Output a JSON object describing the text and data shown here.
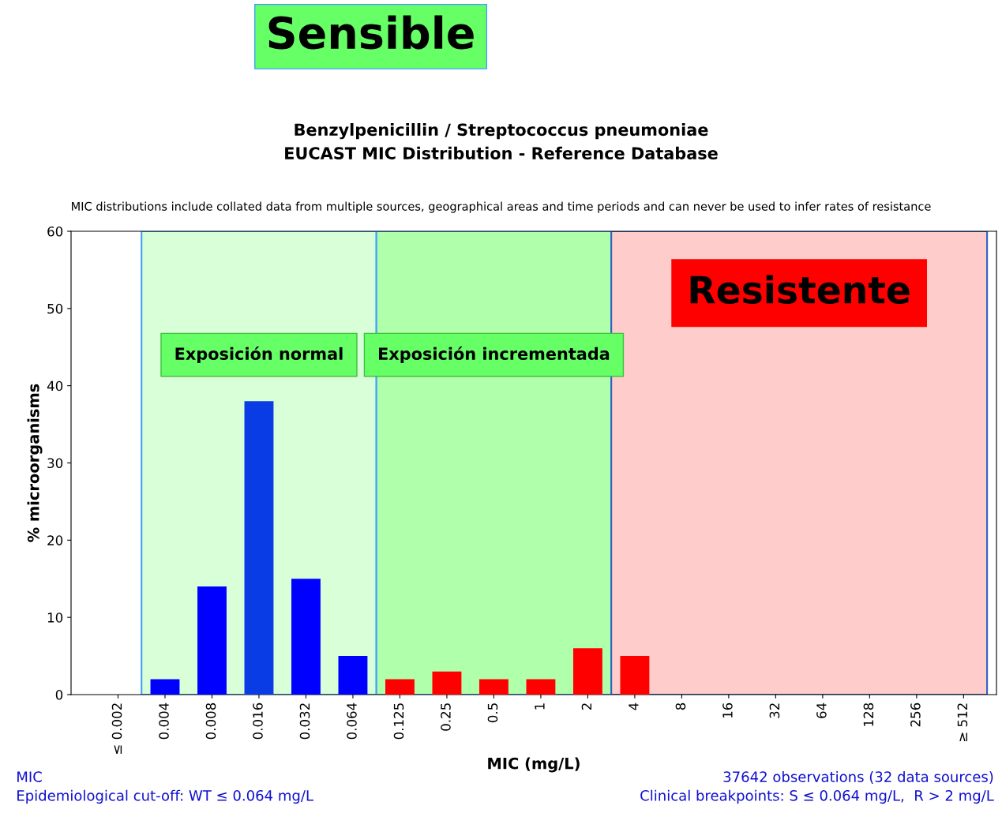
{
  "chart_data": {
    "type": "bar",
    "title": "Benzylpenicillin / Streptococcus pneumoniae\nEUCAST MIC Distribution - Reference Database",
    "subtitle": "MIC distributions include collated data from multiple sources, geographical areas and time periods and can never be used to infer rates of resistance",
    "xlabel": "MIC (mg/L)",
    "ylabel": "% microorganisms",
    "categories": [
      "≤ 0.002",
      "0.004",
      "0.008",
      "0.016",
      "0.032",
      "0.064",
      "0.125",
      "0.25",
      "0.5",
      "1",
      "2",
      "4",
      "8",
      "16",
      "32",
      "64",
      "128",
      "256",
      "≥ 512"
    ],
    "values": [
      0,
      2,
      14,
      38,
      15,
      5,
      2,
      3,
      2,
      2,
      6,
      5,
      0,
      0,
      0,
      0,
      0,
      0,
      0
    ],
    "colors": [
      "#0000ff",
      "#0000ff",
      "#0000ff",
      "#0a3ce6",
      "#0000ff",
      "#0000ff",
      "#ff0000",
      "#ff0000",
      "#ff0000",
      "#ff0000",
      "#ff0000",
      "#ff0000",
      "#ff0000",
      "#ff0000",
      "#ff0000",
      "#ff0000",
      "#ff0000",
      "#ff0000",
      "#ff0000"
    ],
    "ylim": [
      0,
      60
    ],
    "yticks": [
      0,
      10,
      20,
      30,
      40,
      50,
      60
    ],
    "grid": false,
    "legend": false,
    "bands": [
      {
        "axis": "x",
        "from": "0.004",
        "to": "0.064",
        "label": "Exposición normal",
        "color": "#d9ffd9"
      },
      {
        "axis": "x",
        "from": "0.125",
        "to": "2",
        "label": "Exposición incrementada",
        "color": "#b0ffaa"
      },
      {
        "axis": "x",
        "from": "4",
        "to": "≥ 512",
        "label": "Resistente",
        "color": "#ffcccc"
      }
    ],
    "annotations": [
      "Sensible",
      "MIC",
      "Epidemiological cut-off: WT ≤ 0.064 mg/L",
      "37642 observations (32 data sources)",
      "Clinical breakpoints: S ≤ 0.064 mg/L,  R > 2 mg/L"
    ]
  }
}
